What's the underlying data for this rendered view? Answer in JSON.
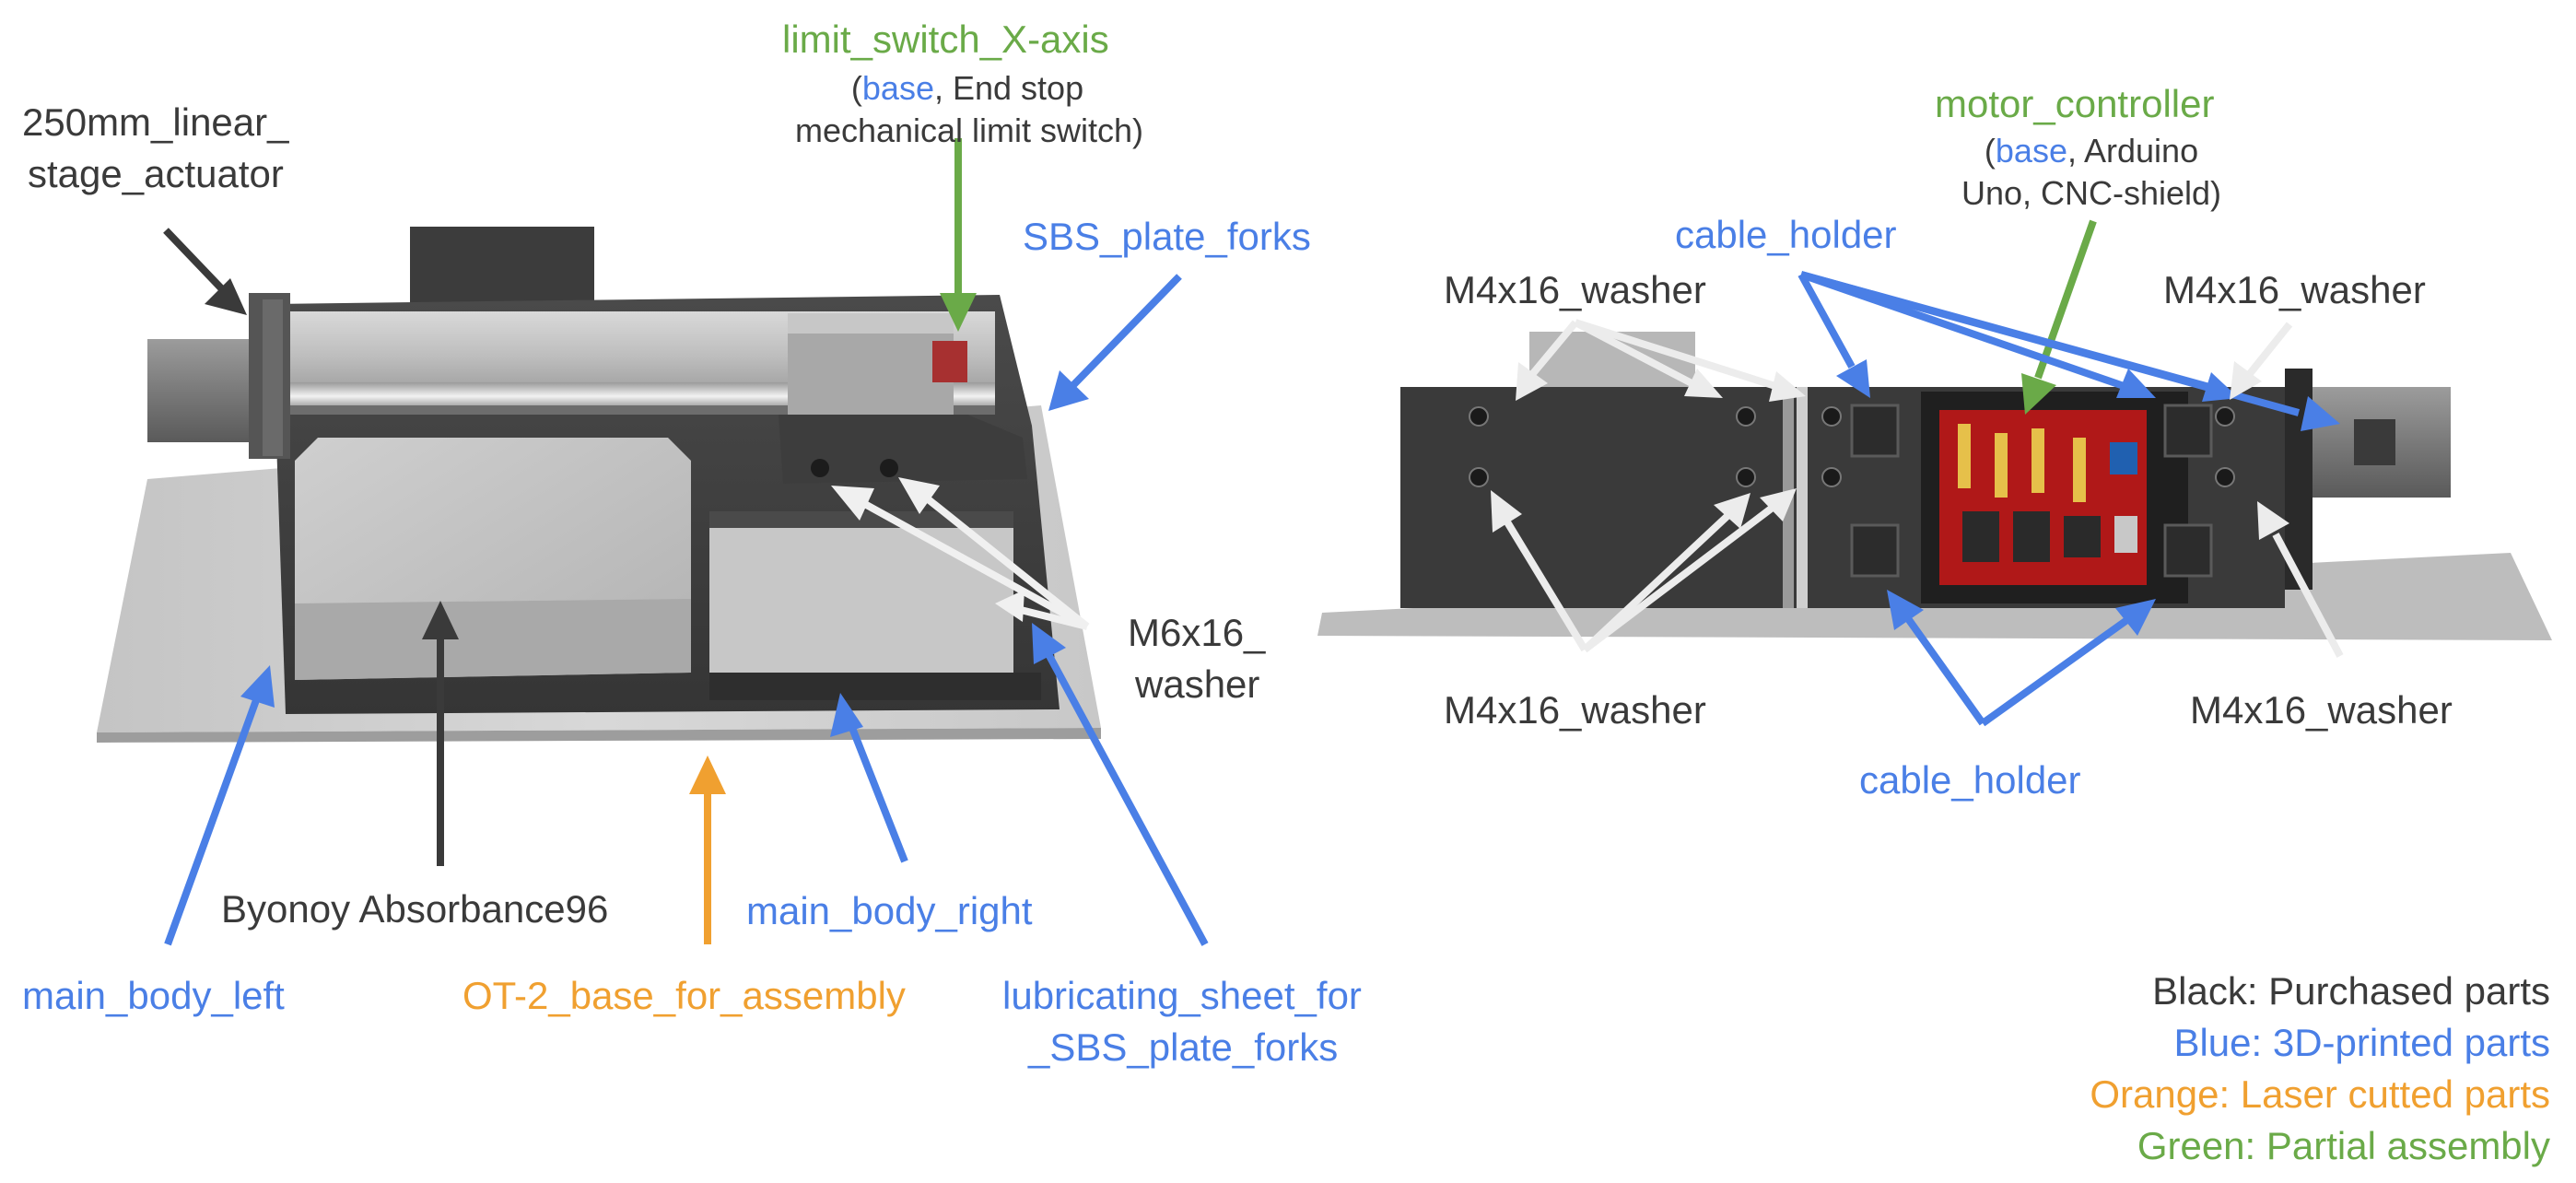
{
  "colors": {
    "black": "#3a3a3a",
    "blue": "#4a7fe6",
    "orange": "#f0a030",
    "green": "#6aaa48",
    "white_arrow": "#ececec"
  },
  "labels": {
    "linear_stage_line1": "250mm_linear_",
    "linear_stage_line2": "stage_actuator",
    "limit_switch_title": "limit_switch_X-axis",
    "limit_switch_sub1_open": "(",
    "limit_switch_sub1_base": "base",
    "limit_switch_sub1_rest": ", End stop",
    "limit_switch_sub2": "mechanical limit switch)",
    "sbs_plate_forks": "SBS_plate_forks",
    "m6_line1": "M6x16_",
    "m6_line2": "washer",
    "byonoy": "Byonoy Absorbance96",
    "main_body_right": "main_body_right",
    "main_body_left": "main_body_left",
    "ot2_base": "OT-2_base_for_assembly",
    "lubricating_line1": "lubricating_sheet_for",
    "lubricating_line2": "_SBS_plate_forks",
    "motor_controller_title": "motor_controller",
    "motor_sub1_open": "(",
    "motor_sub1_base": "base",
    "motor_sub1_rest": ", Arduino",
    "motor_sub2": "Uno, CNC-shield)",
    "cable_holder_top": "cable_holder",
    "cable_holder_bottom": "cable_holder",
    "m4_top_left": "M4x16_washer",
    "m4_top_right": "M4x16_washer",
    "m4_bottom_left": "M4x16_washer",
    "m4_bottom_right": "M4x16_washer"
  },
  "legend": {
    "black": "Black: Purchased parts",
    "blue": "Blue: 3D-printed parts",
    "orange": "Orange: Laser cutted parts",
    "green": "Green: Partial assembly"
  }
}
